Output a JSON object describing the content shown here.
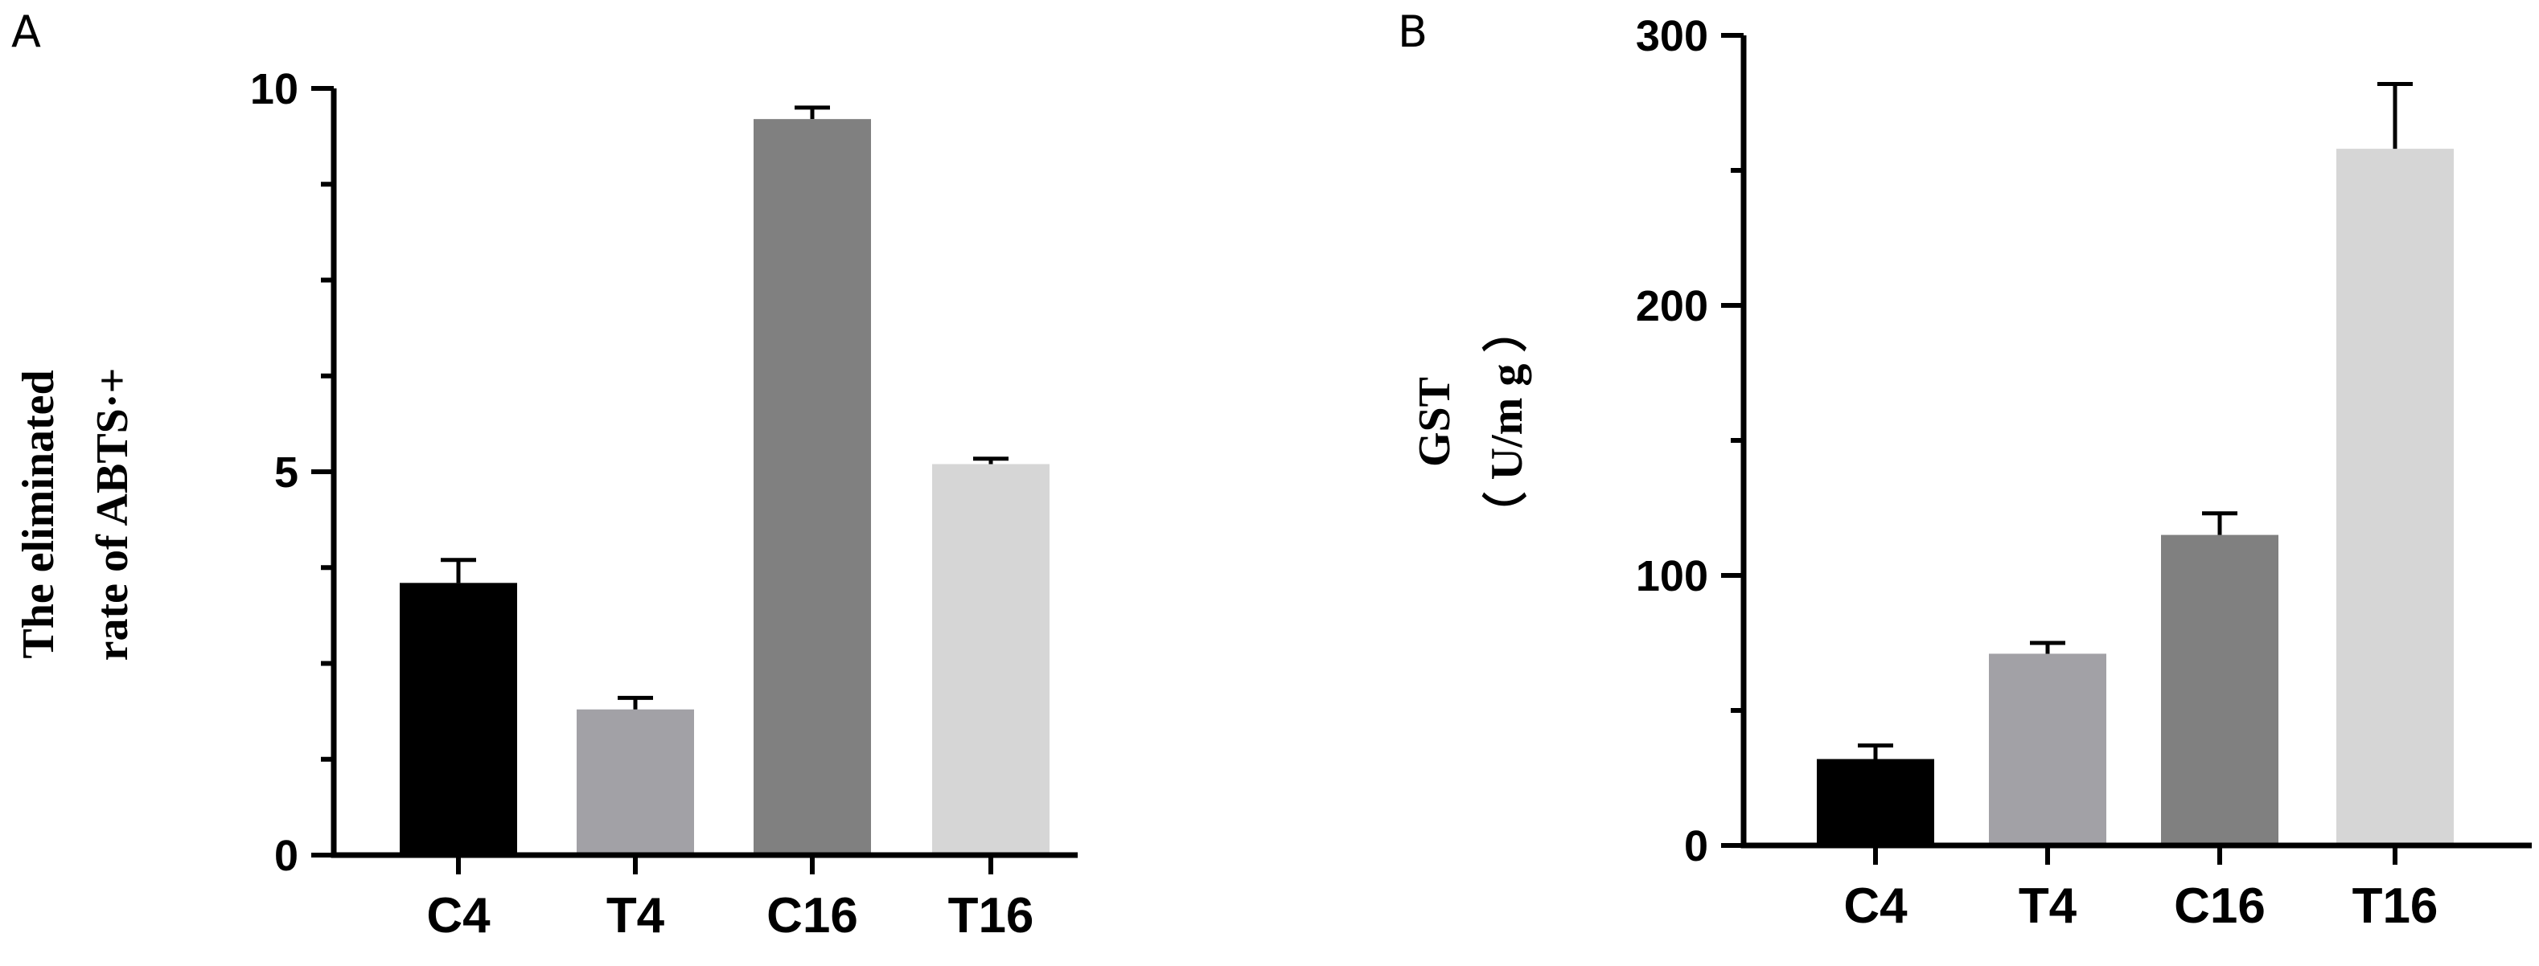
{
  "chart_data": [
    {
      "panel": "A",
      "type": "bar",
      "categories": [
        "C4",
        "T4",
        "C16",
        "T16"
      ],
      "values": [
        3.55,
        1.9,
        9.6,
        5.1
      ],
      "errors": [
        0.3,
        0.15,
        0.15,
        0.07
      ],
      "colors": [
        "#000000",
        "#a2a1a6",
        "#808080",
        "#d6d6d6"
      ],
      "ylabel_lines": [
        "The eliminated",
        "rate of ABTS·+"
      ],
      "ylim": [
        0,
        10
      ],
      "yticks": [
        0,
        5,
        10
      ],
      "yticks_labels": [
        "0",
        "5",
        "10"
      ],
      "grid": false
    },
    {
      "panel": "B",
      "type": "bar",
      "categories": [
        "C4",
        "T4",
        "C16",
        "T16"
      ],
      "values": [
        32,
        71,
        115,
        258
      ],
      "errors": [
        5,
        4,
        8,
        24
      ],
      "colors": [
        "#000000",
        "#a2a1a6",
        "#808080",
        "#d6d6d6"
      ],
      "ylabel_lines": [
        "GST",
        "（ U/m g ）"
      ],
      "ylim": [
        0,
        300
      ],
      "yticks": [
        0,
        100,
        200,
        300
      ],
      "yticks_labels": [
        "0",
        "100",
        "200",
        "300"
      ],
      "grid": false
    }
  ]
}
